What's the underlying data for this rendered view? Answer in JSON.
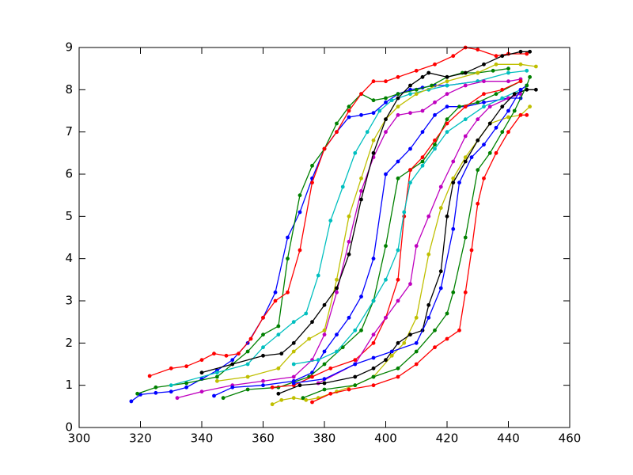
{
  "chart_data": {
    "type": "line",
    "grid": false,
    "xlim": [
      300,
      460
    ],
    "ylim": [
      0,
      9
    ],
    "xticks": [
      300,
      320,
      340,
      360,
      380,
      400,
      420,
      440,
      460
    ],
    "yticks": [
      0,
      1,
      2,
      3,
      4,
      5,
      6,
      7,
      8,
      9
    ],
    "series": [
      {
        "color": "#0000ff",
        "x": [
          317,
          320,
          325,
          330,
          335,
          340,
          345,
          350,
          355,
          360,
          364,
          368,
          372,
          376,
          380,
          384,
          388,
          392,
          396,
          400,
          404,
          408,
          412,
          416,
          420,
          430
        ],
        "values": [
          0.62,
          0.78,
          0.82,
          0.85,
          0.95,
          1.15,
          1.35,
          1.6,
          2.0,
          2.6,
          3.2,
          4.5,
          5.1,
          5.9,
          6.6,
          7.0,
          7.35,
          7.4,
          7.45,
          7.7,
          7.9,
          8.0,
          8.05,
          8.1,
          8.1,
          8.2
        ]
      },
      {
        "color": "#008000",
        "x": [
          319,
          325,
          335,
          345,
          355,
          360,
          365,
          368,
          372,
          376,
          380,
          384,
          388,
          392,
          396,
          400,
          404,
          410,
          415,
          420,
          425,
          430,
          435,
          440
        ],
        "values": [
          0.8,
          0.95,
          1.05,
          1.2,
          1.8,
          2.2,
          2.4,
          4.0,
          5.5,
          6.2,
          6.6,
          7.2,
          7.6,
          7.9,
          7.75,
          7.8,
          7.9,
          8.0,
          8.1,
          8.3,
          8.4,
          8.4,
          8.45,
          8.5
        ]
      },
      {
        "color": "#ff0000",
        "x": [
          323,
          330,
          335,
          340,
          344,
          348,
          352,
          356,
          360,
          364,
          368,
          372,
          376,
          380,
          384,
          388,
          392,
          396,
          400,
          404,
          410,
          416,
          422,
          426,
          430,
          436,
          440,
          446
        ],
        "values": [
          1.22,
          1.4,
          1.45,
          1.6,
          1.75,
          1.7,
          1.75,
          2.1,
          2.6,
          3.0,
          3.2,
          4.2,
          5.8,
          6.6,
          7.0,
          7.5,
          7.9,
          8.2,
          8.2,
          8.3,
          8.45,
          8.6,
          8.8,
          9.0,
          8.95,
          8.8,
          8.85,
          8.85
        ]
      },
      {
        "color": "#00bfbf",
        "x": [
          330,
          345,
          355,
          360,
          365,
          370,
          374,
          378,
          382,
          386,
          390,
          394,
          398,
          402,
          408,
          414,
          420,
          430,
          440,
          446
        ],
        "values": [
          1.0,
          1.3,
          1.5,
          1.9,
          2.2,
          2.5,
          2.7,
          3.6,
          4.9,
          5.7,
          6.5,
          7.0,
          7.5,
          7.75,
          7.9,
          8.0,
          8.1,
          8.2,
          8.4,
          8.45
        ]
      },
      {
        "color": "#bf00bf",
        "x": [
          332,
          340,
          350,
          360,
          370,
          376,
          380,
          384,
          388,
          392,
          396,
          400,
          404,
          408,
          412,
          416,
          420,
          426,
          432,
          440,
          444
        ],
        "values": [
          0.7,
          0.85,
          1.0,
          1.1,
          1.2,
          1.6,
          2.2,
          3.2,
          4.4,
          5.6,
          6.4,
          7.0,
          7.4,
          7.45,
          7.5,
          7.7,
          7.9,
          8.1,
          8.2,
          8.2,
          8.25
        ]
      },
      {
        "color": "#bfbf00",
        "x": [
          345,
          355,
          365,
          370,
          375,
          380,
          384,
          388,
          392,
          396,
          400,
          404,
          410,
          420,
          430,
          436,
          444,
          449
        ],
        "values": [
          1.1,
          1.2,
          1.4,
          1.8,
          2.1,
          2.3,
          3.5,
          5.0,
          5.9,
          6.8,
          7.3,
          7.6,
          7.9,
          8.2,
          8.4,
          8.6,
          8.6,
          8.55
        ]
      },
      {
        "color": "#000000",
        "x": [
          340,
          350,
          360,
          366,
          370,
          376,
          380,
          384,
          388,
          392,
          396,
          400,
          404,
          408,
          412,
          414,
          420,
          426,
          432,
          438,
          444,
          447
        ],
        "values": [
          1.3,
          1.5,
          1.7,
          1.75,
          2.0,
          2.5,
          2.9,
          3.3,
          4.1,
          5.4,
          6.5,
          7.3,
          7.8,
          8.1,
          8.3,
          8.4,
          8.3,
          8.4,
          8.6,
          8.8,
          8.9,
          8.9
        ]
      },
      {
        "color": "#0000ff",
        "x": [
          344,
          350,
          360,
          370,
          376,
          380,
          384,
          388,
          392,
          396,
          400,
          404,
          408,
          412,
          416,
          420,
          426,
          432,
          440,
          444
        ],
        "values": [
          0.75,
          0.95,
          1.0,
          1.1,
          1.3,
          1.8,
          2.2,
          2.6,
          3.1,
          4.0,
          6.0,
          6.3,
          6.6,
          7.0,
          7.4,
          7.6,
          7.6,
          7.7,
          7.8,
          7.8
        ]
      },
      {
        "color": "#008000",
        "x": [
          347,
          355,
          365,
          375,
          380,
          386,
          392,
          396,
          400,
          404,
          408,
          412,
          416,
          420,
          424,
          430,
          436,
          444
        ],
        "values": [
          0.7,
          0.9,
          0.95,
          1.2,
          1.5,
          1.9,
          2.3,
          3.0,
          4.3,
          5.9,
          6.1,
          6.3,
          6.7,
          7.3,
          7.6,
          7.7,
          7.9,
          8.2
        ]
      },
      {
        "color": "#ff0000",
        "x": [
          363,
          370,
          376,
          382,
          390,
          396,
          400,
          404,
          406,
          408,
          412,
          416,
          420,
          426,
          432,
          438,
          444
        ],
        "values": [
          0.95,
          1.0,
          1.2,
          1.4,
          1.6,
          2.0,
          2.6,
          3.5,
          5.0,
          6.1,
          6.4,
          6.8,
          7.2,
          7.6,
          7.9,
          8.0,
          8.2
        ]
      },
      {
        "color": "#00bfbf",
        "x": [
          370,
          378,
          384,
          390,
          396,
          400,
          404,
          406,
          408,
          412,
          416,
          420,
          426,
          432,
          438,
          444
        ],
        "values": [
          1.5,
          1.6,
          1.8,
          2.3,
          3.0,
          3.5,
          4.2,
          5.1,
          5.8,
          6.2,
          6.6,
          7.0,
          7.3,
          7.6,
          7.8,
          8.0
        ]
      },
      {
        "color": "#bf00bf",
        "x": [
          378,
          390,
          396,
          400,
          404,
          408,
          410,
          414,
          418,
          422,
          426,
          430,
          434,
          440,
          444
        ],
        "values": [
          1.05,
          1.5,
          2.2,
          2.6,
          3.0,
          3.4,
          4.3,
          5.0,
          5.7,
          6.3,
          6.9,
          7.3,
          7.6,
          7.8,
          7.9
        ]
      },
      {
        "color": "#bfbf00",
        "x": [
          363,
          366,
          370,
          374,
          378,
          384,
          390,
          396,
          402,
          406,
          410,
          414,
          418,
          422,
          426,
          430,
          434,
          440,
          444,
          447
        ],
        "values": [
          0.55,
          0.65,
          0.7,
          0.65,
          0.7,
          0.85,
          1.0,
          1.2,
          1.7,
          2.0,
          2.6,
          4.1,
          5.2,
          5.9,
          6.4,
          6.8,
          7.2,
          7.35,
          7.4,
          7.6
        ]
      },
      {
        "color": "#000000",
        "x": [
          365,
          372,
          380,
          390,
          396,
          400,
          404,
          408,
          412,
          414,
          418,
          420,
          422,
          426,
          430,
          434,
          438,
          442,
          446,
          449
        ],
        "values": [
          0.8,
          1.0,
          1.05,
          1.2,
          1.4,
          1.6,
          2.0,
          2.2,
          2.3,
          2.9,
          3.7,
          5.0,
          5.8,
          6.3,
          6.8,
          7.2,
          7.6,
          7.9,
          8.0,
          8.0
        ]
      },
      {
        "color": "#0000ff",
        "x": [
          370,
          380,
          390,
          396,
          402,
          410,
          414,
          418,
          422,
          424,
          428,
          432,
          436,
          440,
          444,
          446
        ],
        "values": [
          1.05,
          1.15,
          1.5,
          1.65,
          1.8,
          2.0,
          2.6,
          3.3,
          4.7,
          5.8,
          6.4,
          6.7,
          7.1,
          7.5,
          8.0,
          8.1
        ]
      },
      {
        "color": "#008000",
        "x": [
          373,
          380,
          390,
          396,
          404,
          410,
          416,
          420,
          422,
          426,
          430,
          434,
          438,
          442,
          446,
          447
        ],
        "values": [
          0.7,
          0.9,
          1.0,
          1.2,
          1.4,
          1.8,
          2.3,
          2.7,
          3.2,
          4.5,
          6.1,
          6.5,
          7.0,
          7.5,
          8.1,
          8.3
        ]
      },
      {
        "color": "#ff0000",
        "x": [
          376,
          382,
          388,
          396,
          404,
          410,
          416,
          420,
          424,
          426,
          428,
          430,
          432,
          436,
          440,
          444,
          446
        ],
        "values": [
          0.6,
          0.8,
          0.9,
          1.0,
          1.2,
          1.5,
          1.9,
          2.1,
          2.3,
          3.2,
          4.2,
          5.3,
          5.9,
          6.5,
          7.0,
          7.4,
          7.4
        ]
      }
    ]
  }
}
